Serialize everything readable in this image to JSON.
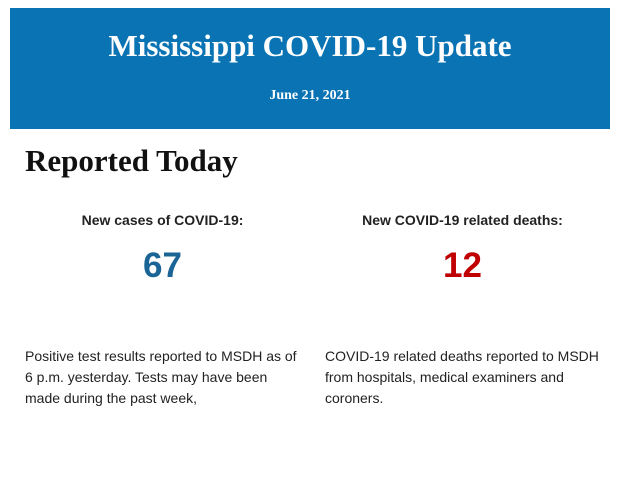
{
  "header": {
    "title": "Mississippi COVID-19 Update",
    "date": "June 21, 2021"
  },
  "section": {
    "title": "Reported Today",
    "stats": [
      {
        "label": "New cases of COVID-19:",
        "value": 67,
        "note": "Positive test results reported to MSDH as of 6 p.m. yesterday. Tests may have been made during the past week,"
      },
      {
        "label": "New COVID-19 related deaths:",
        "value": 12,
        "note": "COVID-19 related deaths reported to MSDH from hospitals, medical examiners and coroners."
      }
    ]
  }
}
